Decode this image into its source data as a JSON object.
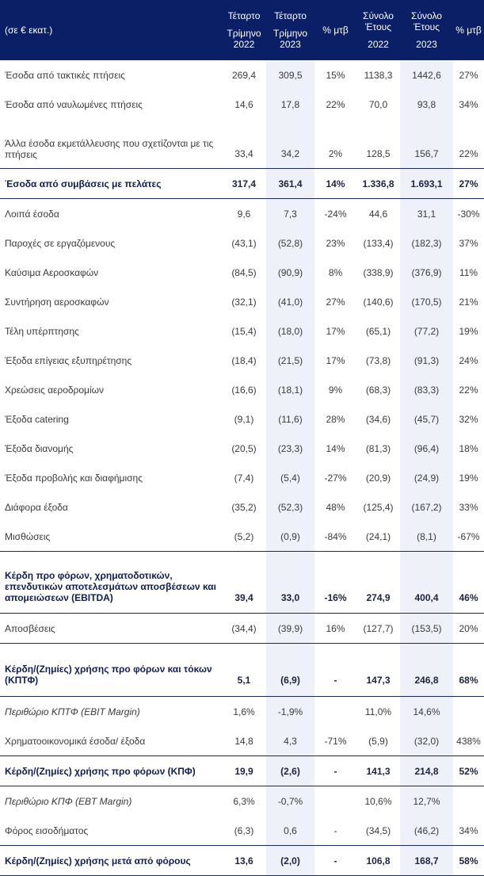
{
  "header": {
    "unit": "(σε € εκατ.)",
    "columns": [
      {
        "line1": "Τέταρτο",
        "line2": "Τρίμηνο",
        "year": "2022"
      },
      {
        "line1": "Τέταρτο",
        "line2": "Τρίμηνο",
        "year": "2023"
      },
      {
        "line1": "% μτβ",
        "line2": "",
        "year": ""
      },
      {
        "line1": "Σύνολο",
        "line2": "Έτους",
        "year": "2022"
      },
      {
        "line1": "Σύνολο",
        "line2": "Έτους",
        "year": "2023"
      },
      {
        "line1": "% μτβ",
        "line2": "",
        "year": ""
      }
    ]
  },
  "rows": [
    {
      "label": "Έσοδα από τακτικές πτήσεις",
      "style": "normal",
      "values": [
        "269,4",
        "309,5",
        "15%",
        "1138,3",
        "1442,6",
        "27%"
      ]
    },
    {
      "label": "Έσοδα από ναυλωμένες πτήσεις",
      "style": "normal",
      "values": [
        "14,6",
        "17,8",
        "22%",
        "70,0",
        "93,8",
        "34%"
      ]
    },
    {
      "label": "Άλλα έσοδα εκμετάλλευσης που σχετίζονται με τις πτήσεις",
      "style": "tall2",
      "values": [
        "33,4",
        "34,2",
        "2%",
        "128,5",
        "156,7",
        "22%"
      ]
    },
    {
      "label": "Έσοδα από συμβάσεις με πελάτες",
      "style": "bold",
      "values": [
        "317,4",
        "361,4",
        "14%",
        "1.336,8",
        "1.693,1",
        "27%"
      ]
    },
    {
      "label": "Λοιπά έσοδα",
      "style": "normal",
      "values": [
        "9,6",
        "7,3",
        "-24%",
        "44,6",
        "31,1",
        "-30%"
      ]
    },
    {
      "label": "Παροχές σε εργαζόμενους",
      "style": "normal",
      "values": [
        "(43,1)",
        "(52,8)",
        "23%",
        "(133,4)",
        "(182,3)",
        "37%"
      ]
    },
    {
      "label": "Καύσιμα Αεροσκαφών",
      "style": "normal",
      "values": [
        "(84,5)",
        "(90,9)",
        "8%",
        "(338,9)",
        "(376,9)",
        "11%"
      ]
    },
    {
      "label": "Συντήρηση αεροσκαφών",
      "style": "normal",
      "values": [
        "(32,1)",
        "(41,0)",
        "27%",
        "(140,6)",
        "(170,5)",
        "21%"
      ]
    },
    {
      "label": "Τέλη υπέρπτησης",
      "style": "normal",
      "values": [
        "(15,4)",
        "(18,0)",
        "17%",
        "(65,1)",
        "(77,2)",
        "19%"
      ]
    },
    {
      "label": "Έξοδα επίγειας εξυπηρέτησης",
      "style": "normal",
      "values": [
        "(18,4)",
        "(21,5)",
        "17%",
        "(73,8)",
        "(91,3)",
        "24%"
      ]
    },
    {
      "label": "Χρεώσεις αεροδρομίων",
      "style": "normal",
      "values": [
        "(16,6)",
        "(18,1)",
        "9%",
        "(68,3)",
        "(83,3)",
        "22%"
      ]
    },
    {
      "label": "Έξοδα catering",
      "style": "normal",
      "values": [
        "(9,1)",
        "(11,6)",
        "28%",
        "(34,6)",
        "(45,7)",
        "32%"
      ]
    },
    {
      "label": "Έξοδα διανομής",
      "style": "normal",
      "values": [
        "(20,5)",
        "(23,3)",
        "14%",
        "(81,3)",
        "(96,4)",
        "18%"
      ]
    },
    {
      "label": "Έξοδα προβολής και διαφήμισης",
      "style": "normal",
      "values": [
        "(7,4)",
        "(5,4)",
        "-27%",
        "(20,9)",
        "(24,9)",
        "19%"
      ]
    },
    {
      "label": "Διάφορα έξοδα",
      "style": "normal",
      "values": [
        "(35,2)",
        "(52,3)",
        "48%",
        "(125,4)",
        "(167,2)",
        "33%"
      ]
    },
    {
      "label": "Μισθώσεις",
      "style": "normal",
      "values": [
        "(5,2)",
        "(0,9)",
        "-84%",
        "(24,1)",
        "(8,1)",
        "-67%"
      ]
    },
    {
      "label": "Κέρδη προ φόρων, χρηματοδοτικών, επενδυτικών αποτελεσμάτων αποσβέσεων και απομειώσεων (EBITDA)",
      "style": "bold tall3",
      "values": [
        "39,4",
        "33,0",
        "-16%",
        "274,9",
        "400,4",
        "46%"
      ]
    },
    {
      "label": "Αποσβέσεις",
      "style": "normal",
      "values": [
        "(34,4)",
        "(39,9)",
        "16%",
        "(127,7)",
        "(153,5)",
        "20%"
      ]
    },
    {
      "label": "Κέρδη/(Ζημίες) χρήσης προ φόρων και τόκων (ΚΠΤΦ)",
      "style": "bold tall3b",
      "values": [
        "5,1",
        "(6,9)",
        "-",
        "147,3",
        "246,8",
        "68%"
      ]
    },
    {
      "label": "Περιθώριο ΚΠΤΦ (EBIT Margin)",
      "style": "ital",
      "values": [
        "1,6%",
        "-1,9%",
        "",
        "11,0%",
        "14,6%",
        ""
      ]
    },
    {
      "label": "Χρηματοοικονομικά έσοδα/ έξοδα",
      "style": "normal",
      "values": [
        "14,8",
        "4,3",
        "-71%",
        "(5,9)",
        "(32,0)",
        "438%"
      ]
    },
    {
      "label": "Κέρδη/(Ζημίες) χρήσης προ φόρων (ΚΠΦ)",
      "style": "bold",
      "values": [
        "19,9",
        "(2,6)",
        "-",
        "141,3",
        "214,8",
        "52%"
      ]
    },
    {
      "label": "Περιθώριο ΚΠΦ (EBT Margin)",
      "style": "ital",
      "values": [
        "6,3%",
        "-0,7%",
        "",
        "10,6%",
        "12,7%",
        ""
      ]
    },
    {
      "label": "Φόρος εισοδήματος",
      "style": "normal",
      "values": [
        "(6,3)",
        "0,6",
        "-",
        "(34,5)",
        "(46,2)",
        "34%"
      ]
    },
    {
      "label": "Κέρδη/(Ζημίες) χρήσης μετά από φόρους",
      "style": "bold",
      "values": [
        "13,6",
        "(2,0)",
        "-",
        "106,8",
        "168,7",
        "58%"
      ]
    }
  ]
}
